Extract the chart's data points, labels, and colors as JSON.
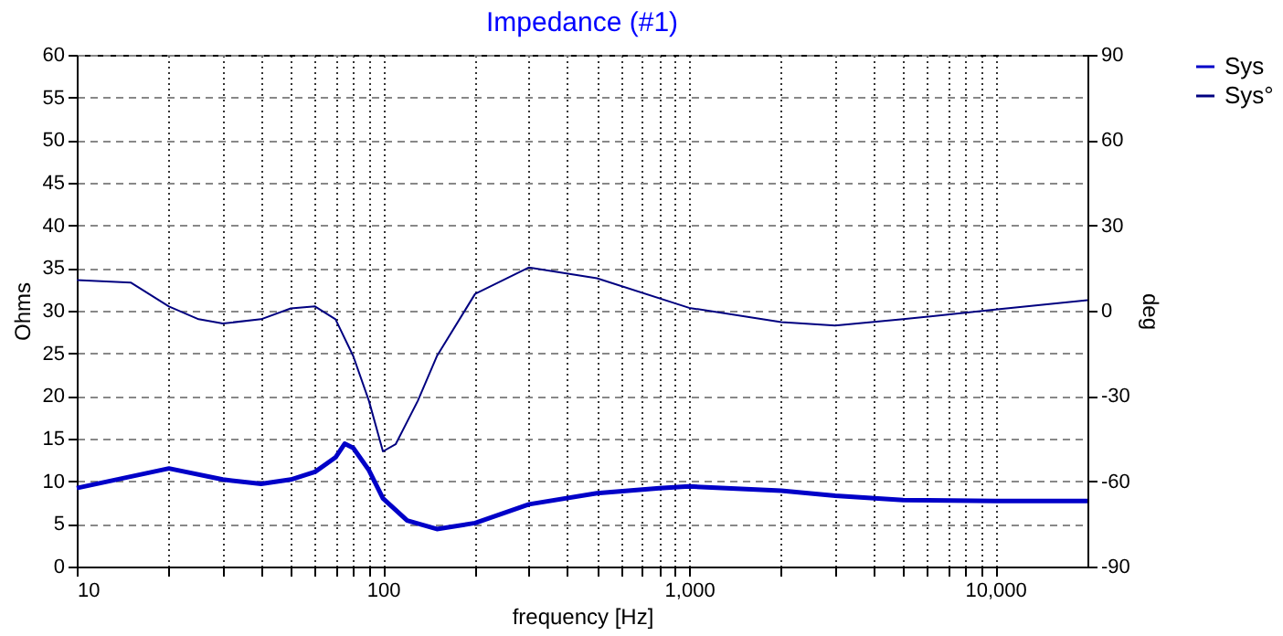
{
  "chart_data": {
    "type": "line",
    "title": "Impedance (#1)",
    "xlabel": "frequency [Hz]",
    "ylabel": "Ohms",
    "y2label": "deg",
    "log": "x",
    "grid": true,
    "legend": "top right",
    "xlim": [
      10,
      20000
    ],
    "ylim": [
      0,
      60
    ],
    "y2lim": [
      -90,
      90
    ],
    "xticks": [
      10,
      {
        "value": 20,
        "label": null
      },
      {
        "value": 30,
        "label": null
      },
      {
        "value": 40,
        "label": null
      },
      {
        "value": 50,
        "label": null
      },
      {
        "value": 60,
        "label": null
      },
      {
        "value": 70,
        "label": null
      },
      {
        "value": 80,
        "label": null
      },
      {
        "value": 90,
        "label": null
      },
      100,
      {
        "value": 200,
        "label": null
      },
      {
        "value": 300,
        "label": null
      },
      {
        "value": 400,
        "label": null
      },
      {
        "value": 500,
        "label": null
      },
      {
        "value": 600,
        "label": null
      },
      {
        "value": 700,
        "label": null
      },
      {
        "value": 800,
        "label": null
      },
      {
        "value": 900,
        "label": null
      },
      {
        "value": 1000,
        "label": "1,000"
      },
      {
        "value": 2000,
        "label": null
      },
      {
        "value": 3000,
        "label": null
      },
      {
        "value": 4000,
        "label": null
      },
      {
        "value": 5000,
        "label": null
      },
      {
        "value": 6000,
        "label": null
      },
      {
        "value": 7000,
        "label": null
      },
      {
        "value": 8000,
        "label": null
      },
      {
        "value": 9000,
        "label": null
      },
      {
        "value": 10000,
        "label": "10,000"
      }
    ],
    "yticks": [
      0,
      5,
      10,
      15,
      20,
      25,
      30,
      35,
      40,
      45,
      50,
      55,
      60
    ],
    "y2ticks": [
      -90,
      -60,
      -30,
      0,
      30,
      60,
      90
    ],
    "series": [
      {
        "name": "Sys",
        "color": "#0000c8",
        "x": [
          10,
          20,
          30,
          40,
          50,
          60,
          70,
          75,
          80,
          90,
          100,
          120,
          150,
          200,
          300,
          500,
          800,
          1000,
          2000,
          3000,
          5000,
          10000,
          20000
        ],
        "values": [
          9.2,
          11.5,
          10.2,
          9.7,
          10.2,
          11.1,
          12.8,
          14.4,
          13.9,
          11.3,
          8.0,
          5.4,
          4.4,
          5.1,
          7.3,
          8.6,
          9.2,
          9.4,
          8.9,
          8.3,
          7.8,
          7.7,
          7.7
        ]
      },
      {
        "name": "Sys°",
        "color": "#000080",
        "axis": "y2",
        "x": [
          10,
          15,
          20,
          25,
          30,
          40,
          50,
          60,
          70,
          80,
          90,
          100,
          110,
          130,
          150,
          200,
          300,
          500,
          1000,
          2000,
          3000,
          5000,
          10000,
          20000
        ],
        "values": [
          10.8,
          9.9,
          1.5,
          -3,
          -4.5,
          -3,
          0.8,
          1.5,
          -3,
          -16,
          -31.7,
          -49.5,
          -47,
          -31.7,
          -16,
          5.9,
          15.2,
          11.4,
          1,
          -4,
          -5.2,
          -3,
          0.4,
          3.7
        ]
      }
    ]
  }
}
